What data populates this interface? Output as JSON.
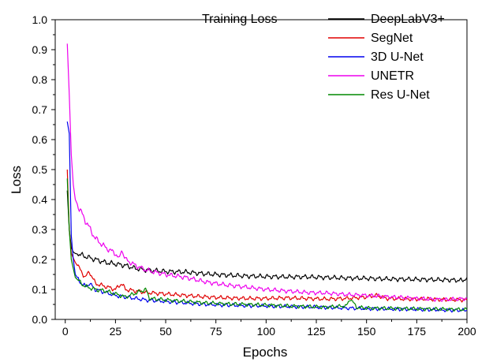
{
  "chart_data": {
    "type": "line",
    "title": "Training Loss",
    "xlabel": "Epochs",
    "ylabel": "Loss",
    "xlim": [
      -5,
      200
    ],
    "ylim": [
      0,
      1.0
    ],
    "xticks": [
      "0",
      "25",
      "50",
      "75",
      "100",
      "125",
      "150",
      "175",
      "200"
    ],
    "yticks": [
      "0.0",
      "0.1",
      "0.2",
      "0.3",
      "0.4",
      "0.5",
      "0.6",
      "0.7",
      "0.8",
      "0.9",
      "1.0"
    ],
    "legend_position": "top-right",
    "grid": false,
    "series": [
      {
        "name": "DeepLabV3+",
        "color": "#000000",
        "points": [
          [
            1,
            0.43
          ],
          [
            2,
            0.3
          ],
          [
            3,
            0.24
          ],
          [
            4,
            0.225
          ],
          [
            5,
            0.22
          ],
          [
            8,
            0.215
          ],
          [
            10,
            0.21
          ],
          [
            15,
            0.2
          ],
          [
            20,
            0.19
          ],
          [
            25,
            0.185
          ],
          [
            30,
            0.18
          ],
          [
            35,
            0.17
          ],
          [
            40,
            0.165
          ],
          [
            50,
            0.16
          ],
          [
            60,
            0.158
          ],
          [
            70,
            0.152
          ],
          [
            80,
            0.148
          ],
          [
            90,
            0.145
          ],
          [
            100,
            0.143
          ],
          [
            110,
            0.142
          ],
          [
            120,
            0.142
          ],
          [
            130,
            0.14
          ],
          [
            140,
            0.138
          ],
          [
            150,
            0.137
          ],
          [
            160,
            0.135
          ],
          [
            170,
            0.134
          ],
          [
            180,
            0.133
          ],
          [
            190,
            0.132
          ],
          [
            198,
            0.13
          ],
          [
            200,
            0.14
          ]
        ]
      },
      {
        "name": "SegNet",
        "color": "#e00000",
        "points": [
          [
            1,
            0.5
          ],
          [
            2,
            0.3
          ],
          [
            3,
            0.22
          ],
          [
            5,
            0.19
          ],
          [
            8,
            0.16
          ],
          [
            10,
            0.14
          ],
          [
            12,
            0.16
          ],
          [
            15,
            0.12
          ],
          [
            20,
            0.11
          ],
          [
            25,
            0.1
          ],
          [
            28,
            0.12
          ],
          [
            30,
            0.1
          ],
          [
            40,
            0.09
          ],
          [
            50,
            0.085
          ],
          [
            60,
            0.08
          ],
          [
            70,
            0.075
          ],
          [
            80,
            0.072
          ],
          [
            90,
            0.07
          ],
          [
            100,
            0.07
          ],
          [
            110,
            0.072
          ],
          [
            120,
            0.07
          ],
          [
            130,
            0.068
          ],
          [
            140,
            0.07
          ],
          [
            150,
            0.075
          ],
          [
            155,
            0.08
          ],
          [
            160,
            0.07
          ],
          [
            170,
            0.068
          ],
          [
            180,
            0.068
          ],
          [
            190,
            0.066
          ],
          [
            200,
            0.065
          ]
        ]
      },
      {
        "name": "3D U-Net",
        "color": "#0000ee",
        "points": [
          [
            1,
            0.66
          ],
          [
            2,
            0.62
          ],
          [
            3,
            0.28
          ],
          [
            4,
            0.2
          ],
          [
            5,
            0.15
          ],
          [
            8,
            0.12
          ],
          [
            10,
            0.11
          ],
          [
            12,
            0.12
          ],
          [
            15,
            0.1
          ],
          [
            20,
            0.09
          ],
          [
            25,
            0.08
          ],
          [
            30,
            0.075
          ],
          [
            40,
            0.065
          ],
          [
            50,
            0.06
          ],
          [
            60,
            0.055
          ],
          [
            70,
            0.05
          ],
          [
            80,
            0.048
          ],
          [
            90,
            0.046
          ],
          [
            100,
            0.045
          ],
          [
            110,
            0.043
          ],
          [
            120,
            0.042
          ],
          [
            130,
            0.04
          ],
          [
            140,
            0.038
          ],
          [
            150,
            0.036
          ],
          [
            160,
            0.035
          ],
          [
            170,
            0.034
          ],
          [
            180,
            0.033
          ],
          [
            190,
            0.031
          ],
          [
            200,
            0.03
          ]
        ]
      },
      {
        "name": "UNETR",
        "color": "#ee00ee",
        "points": [
          [
            1,
            0.92
          ],
          [
            2,
            0.75
          ],
          [
            3,
            0.55
          ],
          [
            4,
            0.45
          ],
          [
            5,
            0.4
          ],
          [
            7,
            0.37
          ],
          [
            10,
            0.33
          ],
          [
            15,
            0.27
          ],
          [
            20,
            0.24
          ],
          [
            25,
            0.22
          ],
          [
            27,
            0.2
          ],
          [
            28,
            0.235
          ],
          [
            30,
            0.2
          ],
          [
            35,
            0.18
          ],
          [
            40,
            0.165
          ],
          [
            50,
            0.15
          ],
          [
            60,
            0.14
          ],
          [
            70,
            0.125
          ],
          [
            80,
            0.115
          ],
          [
            90,
            0.108
          ],
          [
            100,
            0.1
          ],
          [
            110,
            0.095
          ],
          [
            120,
            0.09
          ],
          [
            130,
            0.088
          ],
          [
            140,
            0.083
          ],
          [
            150,
            0.08
          ],
          [
            160,
            0.076
          ],
          [
            170,
            0.072
          ],
          [
            180,
            0.068
          ],
          [
            190,
            0.066
          ],
          [
            200,
            0.07
          ]
        ]
      },
      {
        "name": "Res U-Net",
        "color": "#008800",
        "points": [
          [
            1,
            0.47
          ],
          [
            2,
            0.3
          ],
          [
            3,
            0.2
          ],
          [
            5,
            0.14
          ],
          [
            8,
            0.12
          ],
          [
            10,
            0.11
          ],
          [
            15,
            0.1
          ],
          [
            20,
            0.095
          ],
          [
            25,
            0.085
          ],
          [
            30,
            0.075
          ],
          [
            40,
            0.1
          ],
          [
            42,
            0.07
          ],
          [
            50,
            0.065
          ],
          [
            60,
            0.06
          ],
          [
            70,
            0.055
          ],
          [
            80,
            0.052
          ],
          [
            90,
            0.05
          ],
          [
            100,
            0.048
          ],
          [
            110,
            0.045
          ],
          [
            120,
            0.043
          ],
          [
            130,
            0.041
          ],
          [
            140,
            0.045
          ],
          [
            142,
            0.07
          ],
          [
            145,
            0.04
          ],
          [
            150,
            0.038
          ],
          [
            160,
            0.037
          ],
          [
            170,
            0.036
          ],
          [
            180,
            0.035
          ],
          [
            190,
            0.034
          ],
          [
            200,
            0.033
          ]
        ]
      }
    ]
  }
}
